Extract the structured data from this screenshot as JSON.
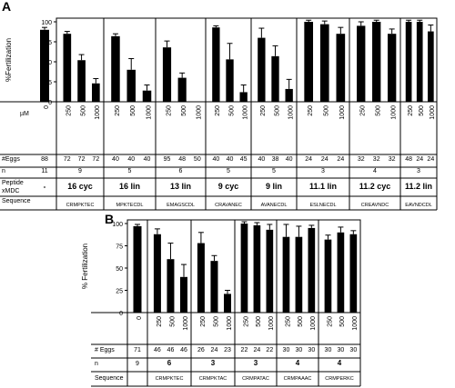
{
  "chart_data": [
    {
      "panel": "A",
      "type": "bar",
      "ylabel": "%Fertilization",
      "unit_label": "µM",
      "ylim": [
        0,
        100
      ],
      "yticks": [
        "0",
        "25",
        "50",
        "75",
        "100"
      ],
      "row_labels": {
        "eggs": "#Eggs",
        "n": "n",
        "peptide": "Peptide xMDC",
        "sequence": "Sequence"
      },
      "control": {
        "x": "0",
        "value": 90,
        "error": 3,
        "eggs": "88",
        "n": "11",
        "peptide": "-",
        "sequence": ""
      },
      "groups": [
        {
          "x": [
            "250",
            "500",
            "1000"
          ],
          "values": [
            85,
            52,
            23
          ],
          "errors": [
            3,
            7,
            6
          ],
          "eggs": [
            "72",
            "72",
            "72"
          ],
          "n": "9",
          "peptide": "16 cyc",
          "sequence": "CRMPKTEC"
        },
        {
          "x": [
            "250",
            "500",
            "1000"
          ],
          "values": [
            82,
            40,
            14
          ],
          "errors": [
            3,
            14,
            7
          ],
          "eggs": [
            "40",
            "40",
            "40"
          ],
          "n": "5",
          "peptide": "16 lin",
          "sequence": "MPKTECDL"
        },
        {
          "x": [
            "250",
            "500",
            "1000"
          ],
          "values": [
            68,
            30,
            0
          ],
          "errors": [
            8,
            6,
            0
          ],
          "eggs": [
            "95",
            "48",
            "50"
          ],
          "n": "6",
          "peptide": "13 lin",
          "sequence": "EMAGSCDL"
        },
        {
          "x": [
            "250",
            "500",
            "1000"
          ],
          "values": [
            93,
            53,
            12
          ],
          "errors": [
            2,
            20,
            9
          ],
          "eggs": [
            "40",
            "40",
            "45"
          ],
          "n": "5",
          "peptide": "9 cyc",
          "sequence": "CRAVANEC"
        },
        {
          "x": [
            "250",
            "500",
            "1000"
          ],
          "values": [
            80,
            57,
            16
          ],
          "errors": [
            12,
            13,
            12
          ],
          "eggs": [
            "40",
            "38",
            "40"
          ],
          "n": "5",
          "peptide": "9 lin",
          "sequence": "AVANECDL"
        },
        {
          "x": [
            "250",
            "500",
            "1000"
          ],
          "values": [
            100,
            97,
            85
          ],
          "errors": [
            2,
            4,
            8
          ],
          "eggs": [
            "24",
            "24",
            "24"
          ],
          "n": "3",
          "peptide": "11.1 lin",
          "sequence": "ESLNECDL"
        },
        {
          "x": [
            "250",
            "500",
            "1000"
          ],
          "values": [
            95,
            100,
            85
          ],
          "errors": [
            5,
            2,
            6
          ],
          "eggs": [
            "32",
            "32",
            "32"
          ],
          "n": "4",
          "peptide": "11.2 cyc",
          "sequence": "CREAVNDC"
        },
        {
          "x": [
            "250",
            "500",
            "1000"
          ],
          "values": [
            100,
            100,
            88
          ],
          "errors": [
            2,
            2,
            8
          ],
          "eggs": [
            "48",
            "24",
            "24"
          ],
          "n": "3",
          "peptide": "11.2 lin",
          "sequence": "EAVNDCDL"
        }
      ]
    },
    {
      "panel": "B",
      "type": "bar",
      "ylabel": "% Fertilization",
      "ylim": [
        0,
        100
      ],
      "yticks": [
        "0",
        "25",
        "50",
        "75",
        "100"
      ],
      "row_labels": {
        "eggs": "# Eggs",
        "n": "n",
        "sequence": "Sequence"
      },
      "control": {
        "x": "0",
        "value": 97,
        "error": 2,
        "eggs": "71",
        "n": "9",
        "sequence": ""
      },
      "groups": [
        {
          "x": [
            "250",
            "500",
            "1000"
          ],
          "values": [
            88,
            60,
            40
          ],
          "errors": [
            6,
            18,
            14
          ],
          "eggs": [
            "46",
            "46",
            "46"
          ],
          "n": "6",
          "sequence": "CRMPKTEC"
        },
        {
          "x": [
            "250",
            "500",
            "1000"
          ],
          "values": [
            78,
            58,
            21
          ],
          "errors": [
            12,
            6,
            4
          ],
          "eggs": [
            "26",
            "24",
            "23"
          ],
          "n": "3",
          "sequence": "CRMPKTAC"
        },
        {
          "x": [
            "250",
            "500",
            "1000"
          ],
          "values": [
            100,
            98,
            93
          ],
          "errors": [
            2,
            3,
            6
          ],
          "eggs": [
            "22",
            "24",
            "22"
          ],
          "n": "3",
          "sequence": "CRMPATAC"
        },
        {
          "x": [
            "250",
            "500",
            "1000"
          ],
          "values": [
            85,
            85,
            95
          ],
          "errors": [
            14,
            12,
            3
          ],
          "eggs": [
            "30",
            "30",
            "30"
          ],
          "n": "4",
          "sequence": "CRMPAAAC"
        },
        {
          "x": [
            "250",
            "500",
            "1000"
          ],
          "values": [
            82,
            90,
            88
          ],
          "errors": [
            5,
            6,
            4
          ],
          "eggs": [
            "30",
            "30",
            "30"
          ],
          "n": "4",
          "sequence": "CRMPERKC"
        }
      ]
    }
  ]
}
